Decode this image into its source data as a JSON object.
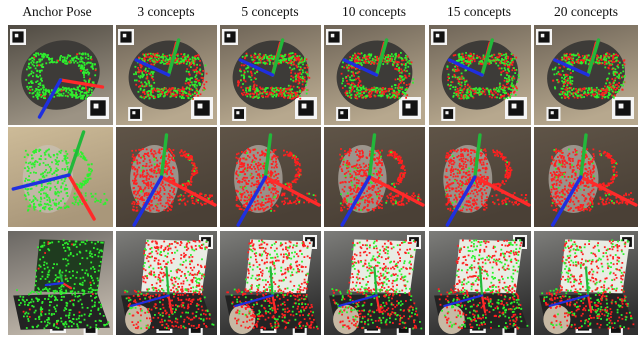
{
  "headers": [
    "Anchor Pose",
    "3 concepts",
    "5 concepts",
    "10  concepts",
    "15  concepts",
    "20  concepts"
  ],
  "rows": [
    {
      "object": "twisted-ring-object",
      "bg_top": "#6e6457",
      "bg_bottom": "#b7a88e",
      "anchor_bg_top": "#4f4a42",
      "anchor_bg_bottom": "#9c9384",
      "object_color": "#3d3b38"
    },
    {
      "object": "mug",
      "bg_top": "#5f5447",
      "bg_bottom": "#4a4036",
      "anchor_bg_top": "#cdbb98",
      "anchor_bg_bottom": "#a9977a",
      "object_color": "#c9c5be"
    },
    {
      "object": "laptop",
      "bg_top": "#7d7d7a",
      "bg_bottom": "#2f2f2f",
      "anchor_bg_top": "#6a6763",
      "anchor_bg_bottom": "#bdb4a8",
      "object_color": "#232323"
    }
  ],
  "colors": {
    "point_green": "#2ef02e",
    "point_red": "#ff2020",
    "axis_red": "#ff2a2a",
    "axis_green": "#22b83a",
    "axis_blue": "#1f2fe0",
    "marker_black": "#111111",
    "marker_white": "#f5f5f5"
  },
  "overlay_ratio_green": [
    [
      0.95,
      0.55,
      0.55,
      0.55,
      0.55,
      0.55
    ],
    [
      0.95,
      0.08,
      0.08,
      0.08,
      0.08,
      0.08
    ],
    [
      0.95,
      0.28,
      0.3,
      0.42,
      0.42,
      0.42
    ]
  ]
}
